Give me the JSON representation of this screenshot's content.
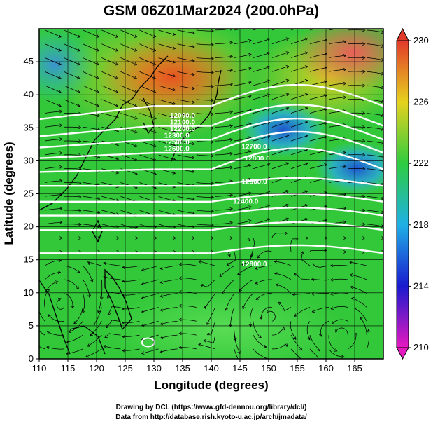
{
  "chart_data": {
    "type": "heatmap",
    "title": "GSM 06Z01Mar2024 (200.0hPa)",
    "xlabel": "Longitude (degrees)",
    "ylabel": "Latitude  (degrees)",
    "xlim": [
      110,
      170
    ],
    "ylim": [
      0,
      50
    ],
    "xticks": [
      110,
      115,
      120,
      125,
      130,
      135,
      140,
      145,
      150,
      155,
      160,
      165
    ],
    "yticks": [
      0,
      5,
      10,
      15,
      20,
      25,
      30,
      35,
      40,
      45
    ],
    "grid": true,
    "colorbar": {
      "min": 210,
      "max": 230,
      "ticks": [
        210,
        214,
        218,
        222,
        226,
        230
      ],
      "colors": [
        "#e619c0",
        "#1a1acf",
        "#1fb0e6",
        "#2ecc40",
        "#e6d21e",
        "#e23a2a"
      ]
    },
    "contour_labels": [
      "12000.0",
      "12100.0",
      "12200.0",
      "12300.0",
      "12400.0",
      "12500.0",
      "12600.0",
      "12700.0",
      "12800.0",
      "12900.0"
    ],
    "contour_label_positions": [
      {
        "label": "12700.0",
        "lon": 147.5,
        "lat": 31.8
      },
      {
        "label": "12800.0",
        "lon": 148.0,
        "lat": 30.0
      },
      {
        "label": "12900.0",
        "lon": 147.5,
        "lat": 26.5
      },
      {
        "label": "12400.0",
        "lon": 146.0,
        "lat": 23.5
      },
      {
        "label": "12800.0",
        "lon": 147.5,
        "lat": 14.0
      },
      {
        "label": "12000.0",
        "lon": 135.0,
        "lat": 36.5
      },
      {
        "label": "12100.0",
        "lon": 135.0,
        "lat": 35.5
      },
      {
        "label": "12200.0",
        "lon": 135.0,
        "lat": 34.5
      },
      {
        "label": "12300.0",
        "lon": 134.0,
        "lat": 33.5
      },
      {
        "label": "12500.0",
        "lon": 134.0,
        "lat": 32.5
      },
      {
        "label": "12600.0",
        "lon": 134.0,
        "lat": 31.5
      }
    ],
    "contour_lines_lat": [
      38.3,
      35.3,
      33.2,
      31.2,
      28.7,
      26.2,
      23.8,
      21.7,
      19.5,
      16.0
    ]
  },
  "credits": {
    "line1": "Drawing by DCL (https://www.gfd-dennou.org/library/dcl/)",
    "line2": "Data from http://database.rish.kyoto-u.ac.jp/arch/jmadata/"
  }
}
